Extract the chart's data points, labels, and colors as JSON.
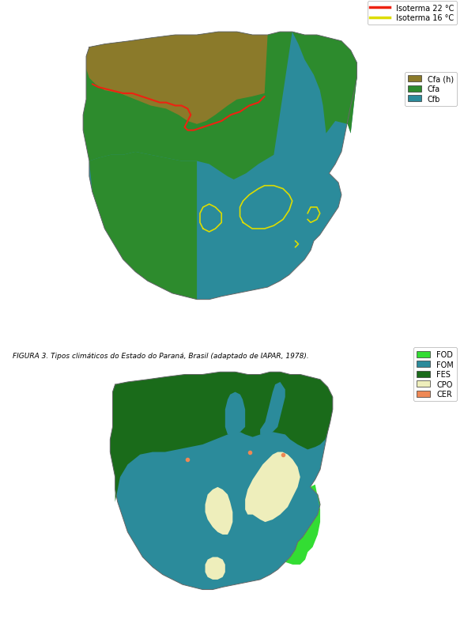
{
  "figure_caption": "FIGURA 3. Tipos climáticos do Estado do Paraná, Brasil (adaptado de IAPAR, 1978).",
  "map1_legend": {
    "isoterma22": {
      "label": "Isoterma 22 °C",
      "color": "#EE2211"
    },
    "isoterma16": {
      "label": "Isoterma 16 °C",
      "color": "#DDDD00"
    },
    "cfa_h": {
      "label": "Cfa (h)",
      "color": "#8B7A2A"
    },
    "cfa": {
      "label": "Cfa",
      "color": "#2D8B2D"
    },
    "cfb": {
      "label": "Cfb",
      "color": "#2B8B9B"
    }
  },
  "map2_legend": {
    "fod": {
      "label": "FOD",
      "color": "#33DD33"
    },
    "fom": {
      "label": "FOM",
      "color": "#2B8B9B"
    },
    "fes": {
      "label": "FES",
      "color": "#1A6B1A"
    },
    "cpo": {
      "label": "CPO",
      "color": "#EEEEBB"
    },
    "cer": {
      "label": "CER",
      "color": "#EE8855"
    }
  },
  "colors": {
    "background": "#FFFFFF"
  }
}
